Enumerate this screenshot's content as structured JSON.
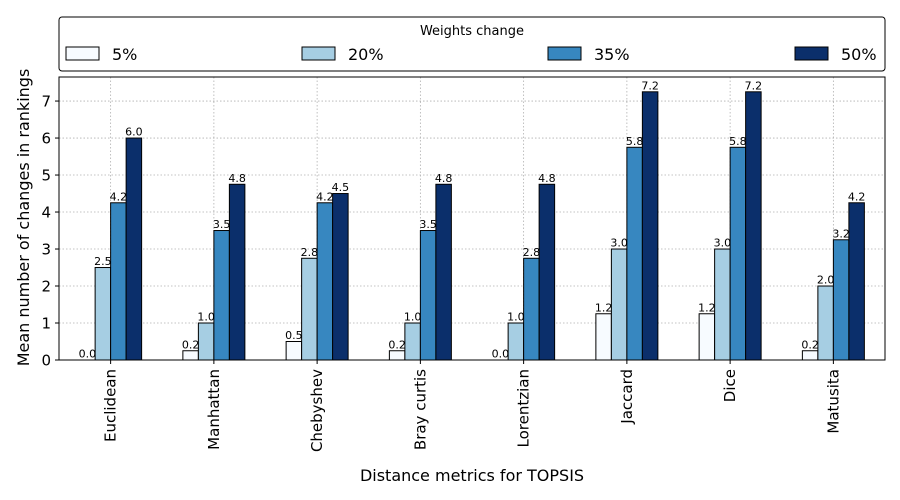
{
  "chart_data": {
    "type": "bar",
    "categories": [
      "Euclidean",
      "Manhattan",
      "Chebyshev",
      "Bray curtis",
      "Lorentzian",
      "Jaccard",
      "Dice",
      "Matusita"
    ],
    "series": [
      {
        "name": "5%",
        "values": [
          0.0,
          0.25,
          0.5,
          0.25,
          0.0,
          1.25,
          1.25,
          0.25
        ],
        "labels": [
          "0.0",
          "0.2",
          "0.5",
          "0.2",
          "0.0",
          "1.2",
          "1.2",
          "0.2"
        ],
        "color": "#f7fbff"
      },
      {
        "name": "20%",
        "values": [
          2.5,
          1.0,
          2.75,
          1.0,
          1.0,
          3.0,
          3.0,
          2.0
        ],
        "labels": [
          "2.5",
          "1.0",
          "2.8",
          "1.0",
          "1.0",
          "3.0",
          "3.0",
          "2.0"
        ],
        "color": "#a6cee3"
      },
      {
        "name": "35%",
        "values": [
          4.25,
          3.5,
          4.25,
          3.5,
          2.75,
          5.75,
          5.75,
          3.25
        ],
        "labels": [
          "4.2",
          "3.5",
          "4.2",
          "3.5",
          "2.8",
          "5.8",
          "5.8",
          "3.2"
        ],
        "color": "#3787c0"
      },
      {
        "name": "50%",
        "values": [
          6.0,
          4.75,
          4.5,
          4.75,
          4.75,
          7.25,
          7.25,
          4.25
        ],
        "labels": [
          "6.0",
          "4.8",
          "4.5",
          "4.8",
          "4.8",
          "7.2",
          "7.2",
          "4.2"
        ],
        "color": "#0b2f6b"
      }
    ],
    "xlabel": "Distance metrics for TOPSIS",
    "ylabel": "Mean number of changes in rankings",
    "ylim": [
      0,
      7.65
    ],
    "yticks": [
      0,
      1,
      2,
      3,
      4,
      5,
      6,
      7
    ],
    "grid": true,
    "legend": {
      "title": "Weights change",
      "placement": "top",
      "ncol": 4
    }
  }
}
